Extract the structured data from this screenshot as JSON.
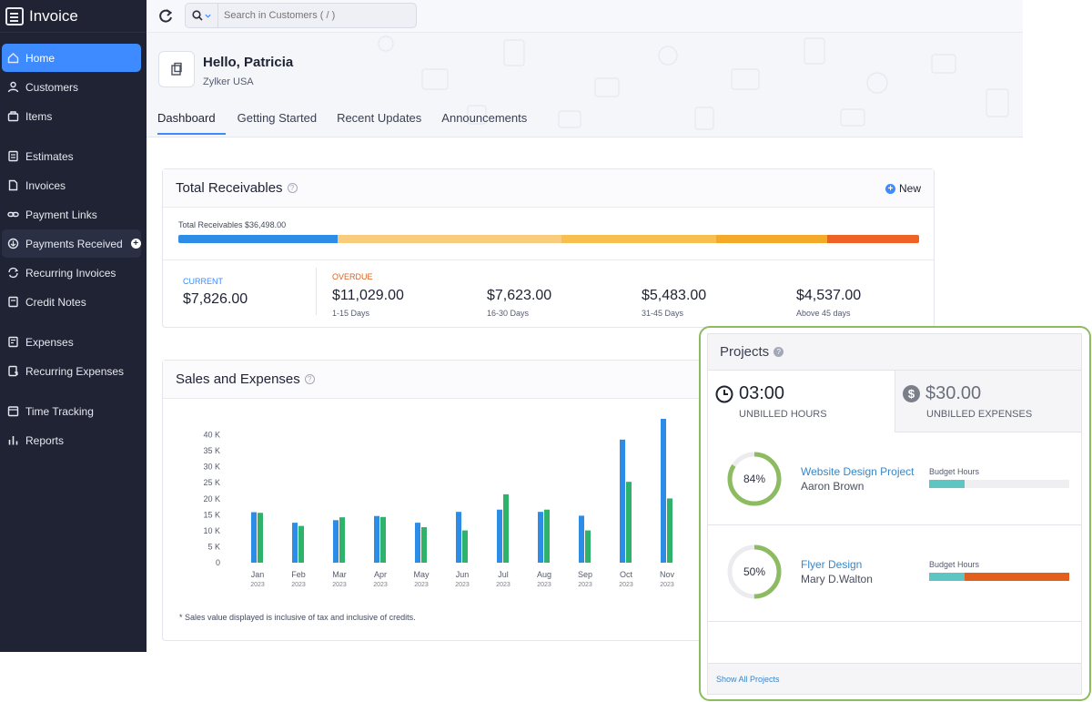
{
  "app": {
    "brand": "Invoice"
  },
  "sidebar": {
    "items": [
      {
        "label": "Home",
        "icon": "home-icon"
      },
      {
        "label": "Customers",
        "icon": "user-icon"
      },
      {
        "label": "Items",
        "icon": "box-icon"
      },
      {
        "label": "Estimates",
        "icon": "estimate-icon"
      },
      {
        "label": "Invoices",
        "icon": "document-icon"
      },
      {
        "label": "Payment Links",
        "icon": "link-icon"
      },
      {
        "label": "Payments Received",
        "icon": "payment-icon"
      },
      {
        "label": "Recurring Invoices",
        "icon": "recurring-icon"
      },
      {
        "label": "Credit Notes",
        "icon": "credit-note-icon"
      },
      {
        "label": "Expenses",
        "icon": "expense-icon"
      },
      {
        "label": "Recurring Expenses",
        "icon": "recurring-expense-icon"
      },
      {
        "label": "Time Tracking",
        "icon": "clock-icon"
      },
      {
        "label": "Reports",
        "icon": "chart-icon"
      }
    ]
  },
  "search": {
    "placeholder": "Search in Customers ( / )"
  },
  "header": {
    "greeting": "Hello, Patricia",
    "org": "Zylker USA"
  },
  "tabs": [
    "Dashboard",
    "Getting Started",
    "Recent Updates",
    "Announcements"
  ],
  "receivables": {
    "title": "Total Receivables",
    "new_label": "New",
    "total_text": "Total Receivables $36,498.00",
    "current_label": "CURRENT",
    "current_amount": "$7,826.00",
    "overdue_label": "OVERDUE",
    "buckets": [
      {
        "amount": "$11,029.00",
        "range": "1-15 Days"
      },
      {
        "amount": "$7,623.00",
        "range": "16-30 Days"
      },
      {
        "amount": "$5,483.00",
        "range": "31-45 Days"
      },
      {
        "amount": "$4,537.00",
        "range": "Above 45 days"
      }
    ],
    "bar_segments": [
      {
        "value": 7826,
        "color": "#2d8de6"
      },
      {
        "value": 11029,
        "color": "#f8cc7c"
      },
      {
        "value": 7623,
        "color": "#f6bf4f"
      },
      {
        "value": 5483,
        "color": "#f4aa28"
      },
      {
        "value": 4537,
        "color": "#ef6226"
      }
    ]
  },
  "sales": {
    "title": "Sales and Expenses",
    "footnote": "* Sales value displayed is inclusive of tax and inclusive of credits."
  },
  "chart_data": {
    "type": "bar",
    "categories": [
      "Jan",
      "Feb",
      "Mar",
      "Apr",
      "May",
      "Jun",
      "Jul",
      "Aug",
      "Sep",
      "Oct",
      "Nov"
    ],
    "category_sublabels": [
      "2023",
      "2023",
      "2023",
      "2023",
      "2023",
      "2023",
      "2023",
      "2023",
      "2023",
      "2023",
      "2023"
    ],
    "series": [
      {
        "values": [
          15800,
          12500,
          13300,
          14600,
          12500,
          15900,
          16600,
          15900,
          14700,
          38500,
          45000
        ],
        "color": "#2d8de6"
      },
      {
        "values": [
          15600,
          11500,
          14200,
          14300,
          11100,
          10100,
          21400,
          16600,
          10100,
          25300,
          20100
        ],
        "color": "#2fb36a"
      }
    ],
    "yticks": [
      "0",
      "5 K",
      "10 K",
      "15 K",
      "20 K",
      "25 K",
      "30 K",
      "35 K",
      "40 K"
    ],
    "ylim": [
      0,
      45000
    ]
  },
  "projects": {
    "title": "Projects",
    "unbilled_hours": "03:00",
    "unbilled_hours_label": "UNBILLED HOURS",
    "unbilled_expenses": "$30.00",
    "unbilled_expenses_label": "UNBILLED EXPENSES",
    "items": [
      {
        "name": "Website Design Project",
        "owner": "Aaron Brown",
        "percent": 84,
        "percent_text": "84%",
        "budget_label": "Budget Hours",
        "budget_used": 0.25,
        "budget_over": 0
      },
      {
        "name": "Flyer Design",
        "owner": "Mary D.Walton",
        "percent": 50,
        "percent_text": "50%",
        "budget_label": "Budget Hours",
        "budget_used": 0.25,
        "budget_over": 0.75
      }
    ],
    "footer_link": "Show All Projects",
    "ring_color": "#8dbb62",
    "budget_color": "#5ec6c2",
    "over_color": "#e2601b"
  }
}
